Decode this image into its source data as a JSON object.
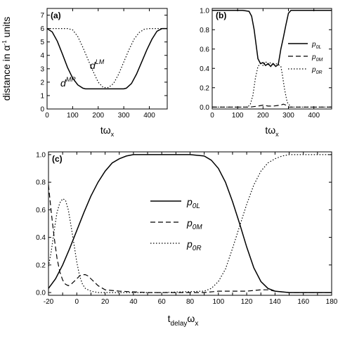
{
  "chart_data": [
    {
      "type": "line",
      "panel_label": "(a)",
      "ylabel_main": "distance in α",
      "ylabel_sup": "-1",
      "ylabel_rest": " units",
      "xlabel_main": "tω",
      "xlabel_sub": "x",
      "xlim": [
        0,
        470
      ],
      "ylim": [
        0,
        7.5
      ],
      "xticks": [
        0,
        100,
        200,
        300,
        400
      ],
      "yticks": [
        0,
        1,
        2,
        3,
        4,
        5,
        6,
        7
      ],
      "series": [
        {
          "name": "d^MR",
          "label_main": "d",
          "label_sup": "MR",
          "style": "solid",
          "x": [
            0,
            20,
            40,
            60,
            80,
            100,
            120,
            140,
            150,
            200,
            250,
            300,
            310,
            330,
            350,
            370,
            390,
            410,
            430,
            450,
            470
          ],
          "y": [
            6,
            5.75,
            5.05,
            4.1,
            3.1,
            2.3,
            1.8,
            1.55,
            1.5,
            1.5,
            1.5,
            1.5,
            1.55,
            1.9,
            2.6,
            3.5,
            4.4,
            5.2,
            5.8,
            6.0,
            6.0
          ]
        },
        {
          "name": "d^LM",
          "label_main": "d",
          "label_sup": "LM",
          "style": "dotted",
          "x": [
            0,
            50,
            80,
            100,
            120,
            140,
            160,
            180,
            200,
            220,
            240,
            260,
            280,
            300,
            320,
            340,
            360,
            380,
            400,
            420,
            470
          ],
          "y": [
            6,
            6,
            6,
            5.9,
            5.4,
            4.6,
            3.7,
            2.8,
            2.0,
            1.6,
            1.6,
            1.9,
            2.6,
            3.5,
            4.4,
            5.2,
            5.7,
            5.95,
            6.0,
            6.0,
            6.0
          ]
        }
      ]
    },
    {
      "type": "line",
      "panel_label": "(b)",
      "xlabel_main": "tω",
      "xlabel_sub": "x",
      "xlim": [
        0,
        470
      ],
      "ylim": [
        -0.02,
        1.02
      ],
      "xticks": [
        0,
        100,
        200,
        300,
        400
      ],
      "yticks": [
        0.0,
        0.2,
        0.4,
        0.6,
        0.8,
        1.0
      ],
      "legend_position": "right",
      "series": [
        {
          "name": "p0L",
          "label_main": "p",
          "label_sub": "0L",
          "style": "solid",
          "x": [
            0,
            120,
            145,
            155,
            165,
            175,
            180,
            190,
            200,
            210,
            220,
            230,
            240,
            250,
            260,
            265,
            270,
            280,
            290,
            300,
            310,
            470
          ],
          "y": [
            1.0,
            1.0,
            0.99,
            0.94,
            0.8,
            0.6,
            0.5,
            0.45,
            0.46,
            0.43,
            0.45,
            0.42,
            0.45,
            0.42,
            0.44,
            0.52,
            0.6,
            0.72,
            0.85,
            0.97,
            1.0,
            1.0
          ]
        },
        {
          "name": "p0M",
          "label_main": "p",
          "label_sub": "0M",
          "style": "dashed",
          "x": [
            0,
            150,
            180,
            200,
            220,
            240,
            270,
            280,
            290,
            300,
            470
          ],
          "y": [
            0.0,
            0.0,
            0.01,
            0.02,
            0.01,
            0.01,
            0.02,
            0.03,
            0.02,
            0.0,
            0.0
          ]
        },
        {
          "name": "p0R",
          "label_main": "p",
          "label_sub": "0R",
          "style": "dotted",
          "x": [
            0,
            140,
            150,
            160,
            170,
            180,
            190,
            200,
            210,
            220,
            230,
            240,
            250,
            260,
            270,
            275,
            285,
            295,
            310,
            470
          ],
          "y": [
            0.0,
            0.0,
            0.03,
            0.12,
            0.3,
            0.42,
            0.45,
            0.43,
            0.47,
            0.44,
            0.46,
            0.43,
            0.45,
            0.44,
            0.42,
            0.35,
            0.18,
            0.05,
            0.0,
            0.0
          ]
        }
      ]
    },
    {
      "type": "line",
      "panel_label": "(c)",
      "xlabel_main": "t",
      "xlabel_sub1": "delay",
      "xlabel_mid": "ω",
      "xlabel_sub2": "x",
      "xlim": [
        -20,
        180
      ],
      "ylim": [
        -0.02,
        1.02
      ],
      "xticks": [
        -20,
        -10,
        0,
        10,
        20,
        30,
        40,
        50,
        60,
        70,
        80,
        90,
        100,
        110,
        120,
        130,
        140,
        150,
        160,
        170,
        180
      ],
      "xticklabels": [
        "-20",
        "",
        "0",
        "",
        "20",
        "",
        "40",
        "",
        "60",
        "",
        "80",
        "",
        "100",
        "",
        "120",
        "",
        "140",
        "",
        "160",
        "",
        "180"
      ],
      "yticks": [
        0.0,
        0.2,
        0.4,
        0.6,
        0.8,
        1.0
      ],
      "legend_position": "center",
      "series": [
        {
          "name": "p0L",
          "label_main": "p",
          "label_sub": "0L",
          "style": "solid",
          "x": [
            -20,
            -15,
            -10,
            -5,
            0,
            5,
            10,
            15,
            20,
            25,
            30,
            35,
            40,
            50,
            60,
            80,
            90,
            95,
            100,
            105,
            110,
            115,
            120,
            125,
            130,
            135,
            140,
            150,
            160,
            180
          ],
          "y": [
            0.03,
            0.1,
            0.2,
            0.32,
            0.45,
            0.58,
            0.7,
            0.8,
            0.88,
            0.94,
            0.97,
            0.99,
            1.0,
            1.0,
            1.0,
            1.0,
            0.99,
            0.96,
            0.9,
            0.8,
            0.66,
            0.5,
            0.33,
            0.18,
            0.08,
            0.03,
            0.01,
            0.0,
            0.0,
            0.0
          ]
        },
        {
          "name": "p0M",
          "label_main": "p",
          "label_sub": "0M",
          "style": "dashed",
          "x": [
            -20,
            -18,
            -16,
            -14,
            -12,
            -10,
            -8,
            -6,
            -4,
            -2,
            0,
            2,
            4,
            6,
            8,
            10,
            12,
            15,
            20,
            30,
            50,
            70,
            90,
            100,
            110,
            120,
            130,
            135,
            140,
            150,
            180
          ],
          "y": [
            0.78,
            0.58,
            0.4,
            0.25,
            0.15,
            0.09,
            0.06,
            0.05,
            0.06,
            0.08,
            0.1,
            0.12,
            0.13,
            0.13,
            0.12,
            0.1,
            0.08,
            0.05,
            0.02,
            0.01,
            0.0,
            0.0,
            0.0,
            0.01,
            0.01,
            0.01,
            0.02,
            0.02,
            0.01,
            0.0,
            0.0
          ]
        },
        {
          "name": "p0R",
          "label_main": "p",
          "label_sub": "0R",
          "style": "dotted",
          "x": [
            -20,
            -18,
            -16,
            -14,
            -12,
            -10,
            -8,
            -6,
            -4,
            -2,
            0,
            2,
            4,
            6,
            8,
            10,
            15,
            20,
            30,
            60,
            90,
            95,
            100,
            105,
            110,
            115,
            120,
            125,
            130,
            135,
            140,
            145,
            150,
            160,
            180
          ],
          "y": [
            0.19,
            0.3,
            0.45,
            0.58,
            0.65,
            0.68,
            0.67,
            0.6,
            0.48,
            0.35,
            0.22,
            0.12,
            0.06,
            0.03,
            0.02,
            0.01,
            0.0,
            0.0,
            0.0,
            0.0,
            0.01,
            0.03,
            0.08,
            0.17,
            0.32,
            0.48,
            0.64,
            0.78,
            0.88,
            0.94,
            0.97,
            0.99,
            1.0,
            1.0,
            1.0
          ]
        }
      ]
    }
  ]
}
